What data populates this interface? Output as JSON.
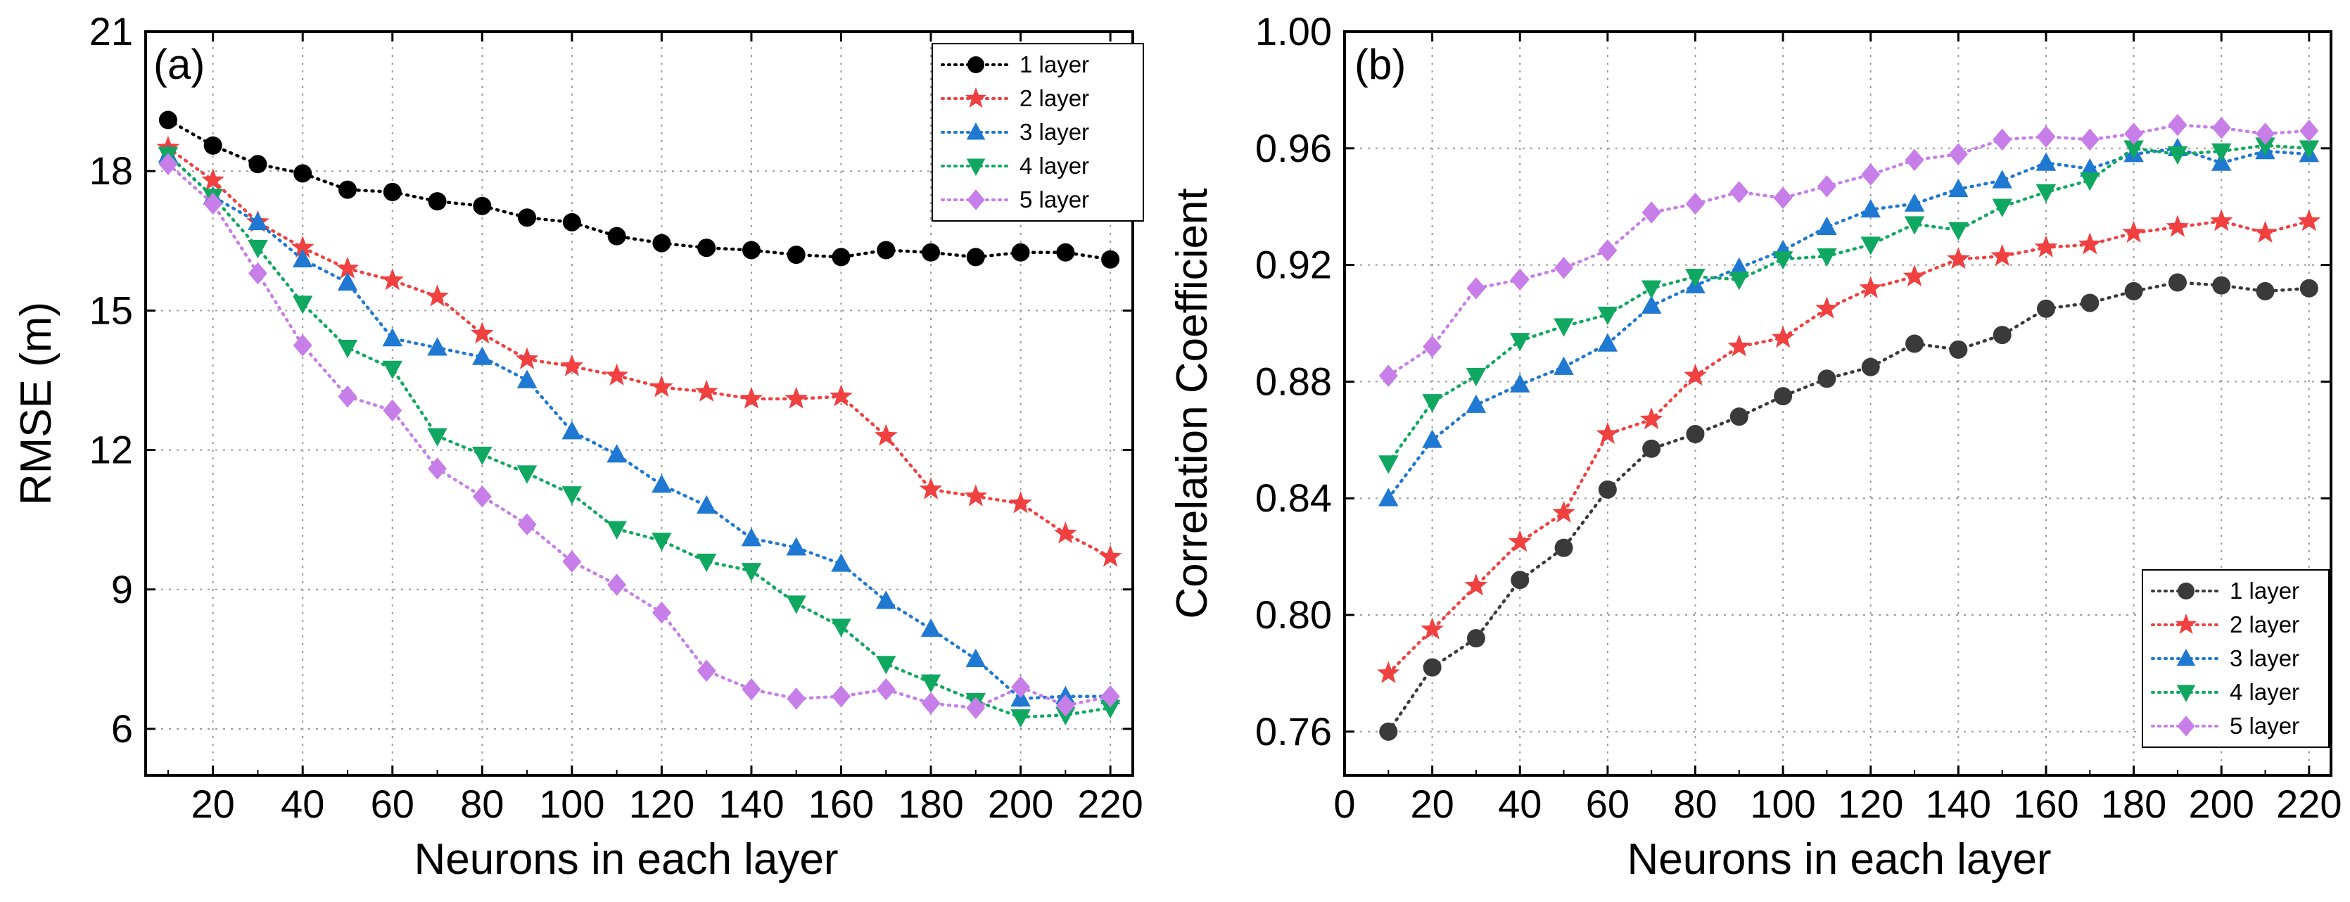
{
  "chart_data": [
    {
      "type": "line",
      "panel_label": "(a)",
      "xlabel": "Neurons in each layer",
      "ylabel": "RMSE (m)",
      "xlim": [
        5,
        225
      ],
      "ylim": [
        5,
        21
      ],
      "xticks": [
        20,
        40,
        60,
        80,
        100,
        120,
        140,
        160,
        180,
        200,
        220
      ],
      "yticks": [
        6,
        9,
        12,
        15,
        18,
        21
      ],
      "xtick_labels": [
        "20",
        "40",
        "60",
        "80",
        "100",
        "120",
        "140",
        "160",
        "180",
        "200",
        "220"
      ],
      "ytick_labels": [
        "6",
        "9",
        "12",
        "15",
        "18",
        "21"
      ],
      "grid": true,
      "legend_position": "top-right",
      "x": [
        10,
        20,
        30,
        40,
        50,
        60,
        70,
        80,
        90,
        100,
        110,
        120,
        130,
        140,
        150,
        160,
        170,
        180,
        190,
        200,
        210,
        220
      ],
      "series": [
        {
          "name": "1 layer",
          "color": "#000000",
          "marker": "circle",
          "values": [
            19.1,
            18.55,
            18.15,
            17.95,
            17.6,
            17.55,
            17.35,
            17.25,
            17.0,
            16.9,
            16.6,
            16.45,
            16.35,
            16.3,
            16.2,
            16.15,
            16.3,
            16.25,
            16.15,
            16.25,
            16.25,
            16.1
          ]
        },
        {
          "name": "2 layer",
          "color": "#f04040",
          "marker": "star",
          "values": [
            18.5,
            17.8,
            16.9,
            16.35,
            15.9,
            15.65,
            15.3,
            14.5,
            13.95,
            13.8,
            13.6,
            13.35,
            13.25,
            13.1,
            13.1,
            13.15,
            12.3,
            11.15,
            11.0,
            10.85,
            10.2,
            9.7
          ]
        },
        {
          "name": "3 layer",
          "color": "#1f78d1",
          "marker": "triangle-up",
          "values": [
            18.35,
            17.45,
            16.9,
            16.1,
            15.6,
            14.4,
            14.2,
            14.0,
            13.5,
            12.4,
            11.9,
            11.25,
            10.8,
            10.1,
            9.9,
            9.55,
            8.75,
            8.15,
            7.5,
            6.65,
            6.7,
            6.7
          ]
        },
        {
          "name": "4 layer",
          "color": "#10a860",
          "marker": "triangle-down",
          "values": [
            18.35,
            17.45,
            16.35,
            15.15,
            14.2,
            13.75,
            12.3,
            11.9,
            11.5,
            11.05,
            10.3,
            10.05,
            9.6,
            9.4,
            8.7,
            8.2,
            7.4,
            7.0,
            6.6,
            6.25,
            6.3,
            6.45
          ]
        },
        {
          "name": "5 layer",
          "color": "#c77ee8",
          "marker": "diamond",
          "values": [
            18.15,
            17.3,
            15.8,
            14.25,
            13.15,
            12.85,
            11.6,
            11.0,
            10.4,
            9.6,
            9.1,
            8.5,
            7.25,
            6.85,
            6.65,
            6.7,
            6.85,
            6.55,
            6.45,
            6.9,
            6.5,
            6.7
          ]
        }
      ]
    },
    {
      "type": "line",
      "panel_label": "(b)",
      "xlabel": "Neurons in each layer",
      "ylabel": "Correlation Coefficient",
      "xlim": [
        0,
        225
      ],
      "ylim": [
        0.745,
        1.0
      ],
      "xticks": [
        0,
        20,
        40,
        60,
        80,
        100,
        120,
        140,
        160,
        180,
        200,
        220
      ],
      "yticks": [
        0.76,
        0.8,
        0.84,
        0.88,
        0.92,
        0.96,
        1.0
      ],
      "xtick_labels": [
        "0",
        "20",
        "40",
        "60",
        "80",
        "100",
        "120",
        "140",
        "160",
        "180",
        "200",
        "220"
      ],
      "ytick_labels": [
        "0.76",
        "0.80",
        "0.84",
        "0.88",
        "0.92",
        "0.96",
        "1.00"
      ],
      "grid": true,
      "legend_position": "bottom-right",
      "x": [
        10,
        20,
        30,
        40,
        50,
        60,
        70,
        80,
        90,
        100,
        110,
        120,
        130,
        140,
        150,
        160,
        170,
        180,
        190,
        200,
        210,
        220
      ],
      "series": [
        {
          "name": "1 layer",
          "color": "#3a3a3a",
          "marker": "circle",
          "values": [
            0.76,
            0.782,
            0.792,
            0.812,
            0.823,
            0.843,
            0.857,
            0.862,
            0.868,
            0.875,
            0.881,
            0.885,
            0.893,
            0.891,
            0.896,
            0.905,
            0.907,
            0.911,
            0.914,
            0.913,
            0.911,
            0.912
          ]
        },
        {
          "name": "2 layer",
          "color": "#f04040",
          "marker": "star",
          "values": [
            0.78,
            0.795,
            0.81,
            0.825,
            0.835,
            0.862,
            0.867,
            0.882,
            0.892,
            0.895,
            0.905,
            0.912,
            0.916,
            0.922,
            0.923,
            0.926,
            0.927,
            0.931,
            0.933,
            0.935,
            0.931,
            0.935
          ]
        },
        {
          "name": "3 layer",
          "color": "#1f78d1",
          "marker": "triangle-up",
          "values": [
            0.84,
            0.86,
            0.872,
            0.879,
            0.885,
            0.893,
            0.906,
            0.913,
            0.919,
            0.925,
            0.933,
            0.939,
            0.941,
            0.946,
            0.949,
            0.955,
            0.953,
            0.958,
            0.96,
            0.955,
            0.959,
            0.958
          ]
        },
        {
          "name": "4 layer",
          "color": "#10a860",
          "marker": "triangle-down",
          "values": [
            0.852,
            0.873,
            0.882,
            0.894,
            0.899,
            0.903,
            0.912,
            0.916,
            0.915,
            0.922,
            0.923,
            0.927,
            0.934,
            0.932,
            0.94,
            0.945,
            0.949,
            0.96,
            0.958,
            0.959,
            0.961,
            0.96
          ]
        },
        {
          "name": "5 layer",
          "color": "#c77ee8",
          "marker": "diamond",
          "values": [
            0.882,
            0.892,
            0.912,
            0.915,
            0.919,
            0.925,
            0.938,
            0.941,
            0.945,
            0.943,
            0.947,
            0.951,
            0.956,
            0.958,
            0.963,
            0.964,
            0.963,
            0.965,
            0.968,
            0.967,
            0.965,
            0.966
          ]
        }
      ]
    }
  ]
}
